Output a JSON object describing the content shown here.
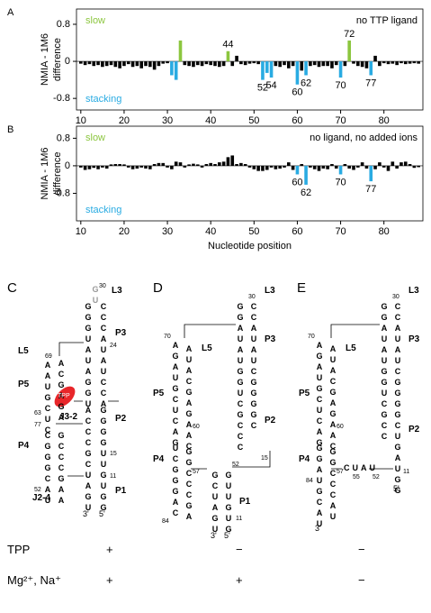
{
  "chart_data": [
    {
      "type": "bar",
      "panel": "A",
      "x": [
        10,
        11,
        12,
        13,
        14,
        15,
        16,
        17,
        18,
        19,
        20,
        21,
        22,
        23,
        24,
        25,
        26,
        27,
        28,
        29,
        30,
        31,
        32,
        33,
        34,
        35,
        36,
        37,
        38,
        39,
        40,
        41,
        42,
        43,
        44,
        45,
        46,
        47,
        48,
        49,
        50,
        51,
        52,
        53,
        54,
        55,
        56,
        57,
        58,
        59,
        60,
        61,
        62,
        63,
        64,
        65,
        66,
        67,
        68,
        69,
        70,
        71,
        72,
        73,
        74,
        75,
        76,
        77,
        78,
        79,
        80,
        81,
        82,
        83,
        84,
        85,
        86,
        87,
        88
      ],
      "values": [
        -0.05,
        -0.08,
        -0.06,
        -0.1,
        -0.08,
        -0.12,
        -0.1,
        -0.08,
        -0.12,
        -0.15,
        -0.1,
        -0.06,
        -0.12,
        -0.1,
        -0.15,
        -0.1,
        -0.12,
        -0.18,
        -0.1,
        -0.05,
        -0.04,
        -0.3,
        -0.4,
        0.45,
        -0.08,
        -0.1,
        -0.12,
        -0.08,
        -0.1,
        -0.06,
        -0.08,
        -0.1,
        -0.12,
        -0.1,
        0.22,
        -0.1,
        0.12,
        -0.06,
        -0.08,
        -0.05,
        -0.04,
        -0.06,
        -0.4,
        -0.25,
        -0.35,
        -0.1,
        -0.12,
        -0.08,
        -0.15,
        -0.1,
        -0.5,
        -0.2,
        -0.3,
        -0.1,
        -0.08,
        -0.12,
        -0.1,
        -0.1,
        -0.15,
        -0.08,
        -0.35,
        -0.1,
        0.45,
        -0.05,
        -0.1,
        -0.12,
        -0.15,
        -0.3,
        0.12,
        -0.1,
        -0.04,
        -0.06,
        -0.05,
        -0.08,
        -0.04,
        -0.06,
        -0.05,
        -0.04,
        -0.05
      ],
      "colors": [
        "#000",
        "#000",
        "#000",
        "#000",
        "#000",
        "#000",
        "#000",
        "#000",
        "#000",
        "#000",
        "#000",
        "#000",
        "#000",
        "#000",
        "#000",
        "#000",
        "#000",
        "#000",
        "#000",
        "#000",
        "#000",
        "#29abe2",
        "#29abe2",
        "#8cc63f",
        "#000",
        "#000",
        "#000",
        "#000",
        "#000",
        "#000",
        "#000",
        "#000",
        "#000",
        "#000",
        "#8cc63f",
        "#000",
        "#000",
        "#000",
        "#000",
        "#000",
        "#000",
        "#000",
        "#29abe2",
        "#29abe2",
        "#29abe2",
        "#000",
        "#000",
        "#000",
        "#000",
        "#000",
        "#29abe2",
        "#000",
        "#29abe2",
        "#000",
        "#000",
        "#000",
        "#000",
        "#000",
        "#000",
        "#000",
        "#29abe2",
        "#000",
        "#8cc63f",
        "#000",
        "#000",
        "#000",
        "#000",
        "#29abe2",
        "#000",
        "#000",
        "#000",
        "#000",
        "#000",
        "#000",
        "#000",
        "#000",
        "#000",
        "#000",
        "#000"
      ],
      "xlim": [
        9,
        89
      ],
      "xticks": [
        10,
        20,
        30,
        40,
        50,
        60,
        70,
        80
      ],
      "ylim": [
        -1.05,
        1.13
      ],
      "yticks": [
        0.8,
        0,
        -0.8
      ],
      "ylabel": [
        "NMIA - 1M6",
        "difference"
      ],
      "labels": {
        "up": "slow",
        "down": "stacking",
        "condition": "no TTP ligand"
      },
      "label_colors": {
        "up": "#8cc63f",
        "down": "#29abe2"
      },
      "annotated": [
        44,
        52,
        54,
        60,
        62,
        70,
        72,
        77
      ]
    },
    {
      "type": "bar",
      "panel": "B",
      "x": [
        10,
        11,
        12,
        13,
        14,
        15,
        16,
        17,
        18,
        19,
        20,
        21,
        22,
        23,
        24,
        25,
        26,
        27,
        28,
        29,
        30,
        31,
        32,
        33,
        34,
        35,
        36,
        37,
        38,
        39,
        40,
        41,
        42,
        43,
        44,
        45,
        46,
        47,
        48,
        49,
        50,
        51,
        52,
        53,
        54,
        55,
        56,
        57,
        58,
        59,
        60,
        61,
        62,
        63,
        64,
        65,
        66,
        67,
        68,
        69,
        70,
        71,
        72,
        73,
        74,
        75,
        76,
        77,
        78,
        79,
        80,
        81,
        82,
        83,
        84,
        85,
        86,
        87,
        88
      ],
      "values": [
        -0.05,
        -0.12,
        -0.1,
        -0.06,
        -0.1,
        -0.05,
        -0.08,
        0.04,
        0.05,
        0.05,
        0.04,
        -0.05,
        -0.1,
        -0.08,
        -0.05,
        -0.08,
        -0.1,
        0.05,
        0.08,
        0.08,
        -0.05,
        -0.1,
        0.12,
        0.1,
        -0.05,
        0.04,
        0.06,
        0.04,
        -0.05,
        0.05,
        0.08,
        0.05,
        0.1,
        0.12,
        0.25,
        0.3,
        0.05,
        0.08,
        0.05,
        -0.05,
        -0.1,
        -0.15,
        -0.15,
        -0.12,
        -0.05,
        -0.1,
        -0.08,
        -0.05,
        0.1,
        -0.12,
        -0.25,
        0.05,
        -0.55,
        -0.05,
        -0.1,
        -0.15,
        -0.08,
        -0.1,
        0.05,
        -0.08,
        -0.25,
        0.05,
        -0.08,
        -0.12,
        -0.05,
        0.1,
        -0.08,
        -0.45,
        -0.1,
        0.1,
        -0.05,
        -0.15,
        0.12,
        -0.08,
        0.1,
        0.12,
        0.05,
        -0.06,
        -0.04
      ],
      "colors": [
        "#000",
        "#000",
        "#000",
        "#000",
        "#000",
        "#000",
        "#000",
        "#000",
        "#000",
        "#000",
        "#000",
        "#000",
        "#000",
        "#000",
        "#000",
        "#000",
        "#000",
        "#000",
        "#000",
        "#000",
        "#000",
        "#000",
        "#000",
        "#000",
        "#000",
        "#000",
        "#000",
        "#000",
        "#000",
        "#000",
        "#000",
        "#000",
        "#000",
        "#000",
        "#000",
        "#000",
        "#000",
        "#000",
        "#000",
        "#000",
        "#000",
        "#000",
        "#000",
        "#000",
        "#000",
        "#000",
        "#000",
        "#000",
        "#000",
        "#000",
        "#29abe2",
        "#000",
        "#29abe2",
        "#000",
        "#000",
        "#000",
        "#000",
        "#000",
        "#000",
        "#000",
        "#29abe2",
        "#000",
        "#000",
        "#000",
        "#000",
        "#000",
        "#000",
        "#29abe2",
        "#000",
        "#000",
        "#000",
        "#000",
        "#000",
        "#000",
        "#000",
        "#000",
        "#000",
        "#000",
        "#000"
      ],
      "xlim": [
        9,
        89
      ],
      "xticks": [
        10,
        20,
        30,
        40,
        50,
        60,
        70,
        80
      ],
      "ylim": [
        -1.6,
        1.15
      ],
      "yticks": [
        0.8,
        0,
        -0.8
      ],
      "ylabel": [
        "NMIA - 1M6",
        "difference"
      ],
      "xlabel": "Nucleotide position",
      "labels": {
        "up": "slow",
        "down": "stacking",
        "condition": "no ligand, no added ions"
      },
      "label_colors": {
        "up": "#8cc63f",
        "down": "#29abe2"
      },
      "annotated": [
        60,
        62,
        70,
        77
      ]
    }
  ],
  "structures": [
    {
      "panel": "C",
      "strands": [
        "GGGUAUAGGU",
        "CCCAUAUCCA",
        "AAUGCUC",
        "ACGAGA",
        "CGGGCAU",
        "GCCCGAA",
        "ACCCGCUAGU",
        "GGGGUUGUGG",
        "GU"
      ],
      "labels": [
        "L3",
        "P3",
        "L5",
        "P5",
        "P2",
        "P4",
        "P1",
        "J3-2",
        "J2-4",
        "TPP",
        "3'",
        "5'"
      ],
      "numbers": [
        30,
        24,
        69,
        63,
        77,
        52,
        15,
        11
      ]
    },
    {
      "panel": "D",
      "strands": [
        "GGAUAUGGUCGCCC",
        "CCAUAUCGGGGC",
        "AGAUGCUCAG",
        "AUACGAGAAC",
        "UCGGGAC",
        "GGCCCGA",
        "GCUAGU",
        "GUUGUG"
      ],
      "labels": [
        "L3",
        "P3",
        "L5",
        "P5",
        "P2",
        "P4",
        "P1",
        "3'",
        "5'"
      ],
      "numbers": [
        30,
        70,
        60,
        57,
        84,
        52,
        15,
        11
      ]
    },
    {
      "panel": "E",
      "strands": [
        "GGAUAUGGUCGCC",
        "CCAUAUCGGGGCUGAUGG",
        "AGAUGCUCAG",
        "AUACGAGAAC",
        "GGAUGCAU",
        "GGCCCAU",
        "CUAU"
      ],
      "labels": [
        "L3",
        "P3",
        "L5",
        "P5",
        "P2",
        "P4",
        "3'",
        "5'"
      ],
      "numbers": [
        30,
        70,
        60,
        57,
        84,
        55,
        52,
        11
      ]
    }
  ],
  "conditions": [
    {
      "name": "TPP",
      "states": [
        "+",
        "−",
        "−"
      ]
    },
    {
      "name": "Mg²⁺, Na⁺",
      "states": [
        "+",
        "+",
        "−"
      ]
    }
  ]
}
